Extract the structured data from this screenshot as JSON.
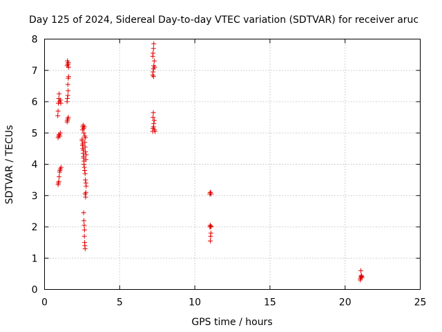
{
  "chart_data": {
    "type": "scatter",
    "title": "Day 125 of 2024, Sidereal Day-to-day VTEC variation (SDTVAR) for receiver aruc",
    "xlabel": "GPS time / hours",
    "ylabel": "SDTVAR / TECUs",
    "xlim": [
      0,
      25
    ],
    "ylim": [
      0,
      8
    ],
    "xticks": [
      0,
      5,
      10,
      15,
      20,
      25
    ],
    "yticks": [
      0,
      1,
      2,
      3,
      4,
      5,
      6,
      7,
      8
    ],
    "xtick_labels": [
      "0",
      "5",
      "10",
      "15",
      "20",
      "25"
    ],
    "ytick_labels": [
      "0",
      "1",
      "2",
      "3",
      "4",
      "5",
      "6",
      "7",
      "8"
    ],
    "grid": true,
    "marker": "+",
    "color": "#e00000",
    "series": [
      {
        "name": "SDTVAR",
        "points": [
          [
            0.9,
            3.35
          ],
          [
            0.92,
            3.4
          ],
          [
            0.95,
            3.45
          ],
          [
            0.97,
            3.6
          ],
          [
            1.0,
            3.75
          ],
          [
            1.02,
            3.8
          ],
          [
            1.05,
            3.85
          ],
          [
            1.1,
            3.9
          ],
          [
            0.9,
            4.85
          ],
          [
            0.93,
            4.9
          ],
          [
            0.97,
            4.95
          ],
          [
            1.02,
            4.9
          ],
          [
            1.05,
            5.0
          ],
          [
            0.88,
            5.55
          ],
          [
            0.9,
            5.7
          ],
          [
            0.92,
            5.95
          ],
          [
            0.95,
            6.1
          ],
          [
            0.97,
            6.25
          ],
          [
            1.0,
            6.0
          ],
          [
            1.05,
            6.05
          ],
          [
            1.08,
            5.95
          ],
          [
            1.5,
            5.35
          ],
          [
            1.52,
            5.4
          ],
          [
            1.55,
            5.45
          ],
          [
            1.58,
            5.5
          ],
          [
            1.5,
            6.0
          ],
          [
            1.52,
            6.1
          ],
          [
            1.55,
            6.2
          ],
          [
            1.57,
            6.35
          ],
          [
            1.55,
            6.55
          ],
          [
            1.58,
            6.75
          ],
          [
            1.6,
            6.8
          ],
          [
            1.5,
            7.15
          ],
          [
            1.52,
            7.3
          ],
          [
            1.55,
            7.2
          ],
          [
            1.58,
            7.25
          ],
          [
            1.6,
            7.1
          ],
          [
            1.57,
            7.2
          ],
          [
            2.5,
            4.8
          ],
          [
            2.52,
            5.1
          ],
          [
            2.55,
            5.2
          ],
          [
            2.57,
            5.25
          ],
          [
            2.6,
            5.15
          ],
          [
            2.62,
            5.0
          ],
          [
            2.65,
            5.2
          ],
          [
            2.68,
            4.9
          ],
          [
            2.5,
            4.75
          ],
          [
            2.52,
            4.6
          ],
          [
            2.55,
            4.5
          ],
          [
            2.57,
            4.35
          ],
          [
            2.6,
            4.2
          ],
          [
            2.62,
            4.0
          ],
          [
            2.65,
            3.9
          ],
          [
            2.67,
            3.8
          ],
          [
            2.7,
            4.55
          ],
          [
            2.72,
            4.4
          ],
          [
            2.75,
            4.15
          ],
          [
            2.7,
            3.7
          ],
          [
            2.72,
            3.5
          ],
          [
            2.75,
            3.4
          ],
          [
            2.77,
            3.3
          ],
          [
            2.7,
            3.05
          ],
          [
            2.73,
            2.95
          ],
          [
            2.75,
            3.1
          ],
          [
            2.55,
            4.65
          ],
          [
            2.58,
            4.45
          ],
          [
            2.6,
            4.25
          ],
          [
            2.63,
            4.1
          ],
          [
            2.68,
            4.7
          ],
          [
            2.72,
            4.85
          ],
          [
            2.77,
            4.3
          ],
          [
            2.6,
            2.45
          ],
          [
            2.62,
            2.2
          ],
          [
            2.64,
            2.05
          ],
          [
            2.66,
            1.9
          ],
          [
            2.65,
            1.7
          ],
          [
            2.67,
            1.5
          ],
          [
            2.68,
            1.4
          ],
          [
            2.7,
            1.3
          ],
          [
            7.2,
            5.05
          ],
          [
            7.22,
            5.15
          ],
          [
            7.25,
            5.2
          ],
          [
            7.27,
            5.3
          ],
          [
            7.3,
            5.4
          ],
          [
            7.32,
            5.1
          ],
          [
            7.35,
            5.05
          ],
          [
            7.22,
            5.5
          ],
          [
            7.24,
            5.65
          ],
          [
            7.2,
            6.85
          ],
          [
            7.22,
            6.95
          ],
          [
            7.25,
            7.05
          ],
          [
            7.27,
            7.15
          ],
          [
            7.3,
            7.3
          ],
          [
            7.32,
            7.1
          ],
          [
            7.25,
            6.8
          ],
          [
            7.2,
            7.45
          ],
          [
            7.22,
            7.55
          ],
          [
            7.25,
            7.7
          ],
          [
            7.27,
            7.85
          ],
          [
            11.0,
            3.05
          ],
          [
            11.02,
            3.1
          ],
          [
            11.05,
            3.1
          ],
          [
            11.08,
            3.05
          ],
          [
            11.0,
            2.0
          ],
          [
            11.02,
            2.05
          ],
          [
            11.05,
            2.0
          ],
          [
            11.08,
            2.02
          ],
          [
            11.03,
            1.55
          ],
          [
            11.05,
            1.7
          ],
          [
            11.07,
            1.8
          ],
          [
            21.0,
            0.3
          ],
          [
            21.02,
            0.35
          ],
          [
            21.05,
            0.4
          ],
          [
            21.08,
            0.45
          ],
          [
            21.1,
            0.42
          ],
          [
            21.12,
            0.38
          ],
          [
            21.05,
            0.6
          ]
        ]
      }
    ]
  }
}
